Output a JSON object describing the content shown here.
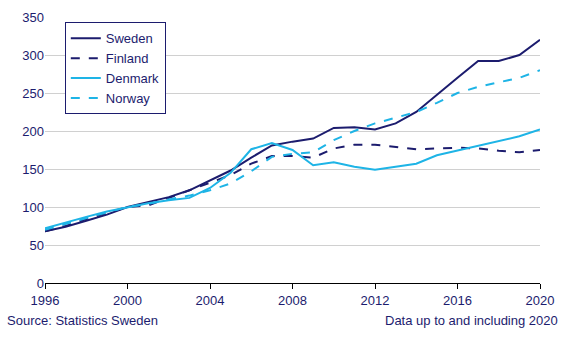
{
  "chart_data": {
    "type": "line",
    "x": [
      1996,
      1997,
      1998,
      1999,
      2000,
      2001,
      2002,
      2003,
      2004,
      2005,
      2006,
      2007,
      2008,
      2009,
      2010,
      2011,
      2012,
      2013,
      2014,
      2015,
      2016,
      2017,
      2018,
      2019,
      2020
    ],
    "series": [
      {
        "name": "Sweden",
        "color": "#1c1c6e",
        "line_style": "solid",
        "values": [
          68,
          74,
          82,
          90,
          100,
          107,
          113,
          122,
          135,
          148,
          165,
          181,
          186,
          190,
          204,
          205,
          202,
          210,
          225,
          248,
          270,
          292,
          292,
          300,
          320
        ]
      },
      {
        "name": "Finland",
        "color": "#1c1c6e",
        "line_style": "dashed",
        "values": [
          68,
          75,
          84,
          92,
          100,
          102,
          112,
          121,
          132,
          142,
          157,
          167,
          167,
          165,
          177,
          182,
          182,
          179,
          176,
          177,
          178,
          177,
          174,
          172,
          175
        ]
      },
      {
        "name": "Denmark",
        "color": "#1eb4e6",
        "line_style": "solid",
        "values": [
          72,
          80,
          87,
          94,
          100,
          105,
          109,
          112,
          125,
          145,
          176,
          184,
          175,
          155,
          159,
          153,
          149,
          153,
          157,
          168,
          174,
          180,
          187,
          193,
          202
        ]
      },
      {
        "name": "Norway",
        "color": "#1eb4e6",
        "line_style": "dashed",
        "values": [
          70,
          78,
          86,
          93,
          100,
          104,
          110,
          115,
          122,
          131,
          147,
          166,
          170,
          172,
          188,
          200,
          210,
          218,
          225,
          237,
          250,
          258,
          264,
          270,
          280
        ]
      }
    ],
    "xlim": [
      1996,
      2020
    ],
    "xticks": [
      1996,
      2000,
      2004,
      2008,
      2012,
      2016,
      2020
    ],
    "ylim": [
      0,
      350
    ],
    "yticks": [
      0,
      50,
      100,
      150,
      200,
      250,
      300,
      350
    ],
    "grid": true,
    "legend": "top left",
    "annotations": [
      "Source: Statistics Sweden",
      "Data up to and including 2020"
    ]
  }
}
